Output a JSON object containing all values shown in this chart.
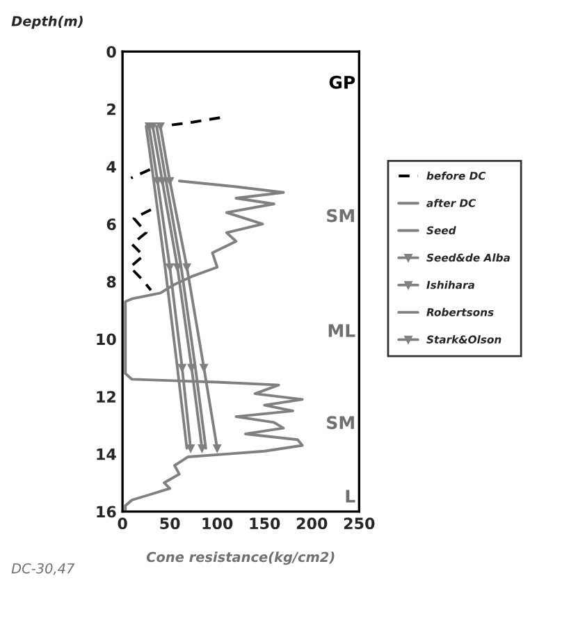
{
  "chart_data": {
    "type": "line",
    "xlabel": "Cone resistance(kg/cm2)",
    "ylabel": "Depth(m)",
    "xlim": [
      0,
      250
    ],
    "xticks": [
      0,
      50,
      100,
      150,
      200,
      250
    ],
    "ylim": [
      16,
      0
    ],
    "yticks": [
      0,
      2,
      4,
      6,
      8,
      10,
      12,
      14,
      16
    ],
    "grid": false,
    "legend": "right",
    "annotations": [
      "GP",
      "SM",
      "ML",
      "SM",
      "L",
      "DC-30,47"
    ],
    "series": [
      {
        "name": "before DC",
        "color": "#000000",
        "line_style": "dashed",
        "marker": "none",
        "x": [
          103,
          75,
          50,
          null,
          29,
          9,
          null,
          30,
          12,
          25,
          10,
          22,
          8,
          20,
          30
        ],
        "values": [
          2.3,
          2.45,
          2.56,
          null,
          4.1,
          4.4,
          null,
          5.5,
          5.8,
          6.3,
          6.7,
          7.1,
          7.5,
          7.9,
          8.3
        ]
      },
      {
        "name": "after DC",
        "color": "#808080",
        "line_style": "solid",
        "marker": "none",
        "x": [
          60,
          120,
          170,
          120,
          160,
          110,
          148,
          110,
          120,
          95,
          100,
          75,
          55,
          40,
          10,
          3,
          3,
          3,
          10,
          100,
          165,
          140,
          190,
          150,
          180,
          120,
          160,
          170,
          130,
          185,
          190,
          150,
          110,
          69,
          55,
          60,
          44,
          50,
          30,
          10,
          3,
          3
        ],
        "values": [
          4.5,
          4.7,
          4.9,
          5.1,
          5.3,
          5.6,
          6.0,
          6.3,
          6.6,
          7.0,
          7.5,
          7.8,
          8.1,
          8.4,
          8.6,
          8.7,
          10.0,
          11.2,
          11.4,
          11.5,
          11.6,
          11.9,
          12.1,
          12.3,
          12.5,
          12.7,
          12.9,
          13.1,
          13.3,
          13.5,
          13.7,
          13.9,
          14.0,
          14.1,
          14.4,
          14.7,
          15.0,
          15.2,
          15.4,
          15.6,
          15.8,
          16.0
        ]
      },
      {
        "name": "Seed",
        "color": "#808080",
        "line_style": "solid",
        "marker": "none",
        "x": [
          25,
          33,
          45,
          58,
          68
        ],
        "values": [
          2.6,
          4.5,
          7.5,
          11.0,
          13.8
        ]
      },
      {
        "name": "Seed&de Alba",
        "color": "#808080",
        "line_style": "solid",
        "marker": "triangle",
        "x": [
          28,
          37,
          50,
          63,
          72
        ],
        "values": [
          2.6,
          4.5,
          7.5,
          11.0,
          13.8
        ]
      },
      {
        "name": "Ishihara",
        "color": "#808080",
        "line_style": "solid",
        "marker": "triangle",
        "x": [
          32,
          42,
          58,
          73,
          84
        ],
        "values": [
          2.6,
          4.5,
          7.5,
          11.0,
          13.8
        ]
      },
      {
        "name": "Robertsons",
        "color": "#808080",
        "line_style": "solid",
        "marker": "none",
        "x": [
          36,
          46,
          62,
          77,
          88
        ],
        "values": [
          2.6,
          4.5,
          7.5,
          11.0,
          13.8
        ]
      },
      {
        "name": "Stark&Olson",
        "color": "#808080",
        "line_style": "solid",
        "marker": "triangle",
        "x": [
          40,
          50,
          68,
          86,
          100
        ],
        "values": [
          2.6,
          4.5,
          7.5,
          11.0,
          13.8
        ]
      }
    ]
  }
}
